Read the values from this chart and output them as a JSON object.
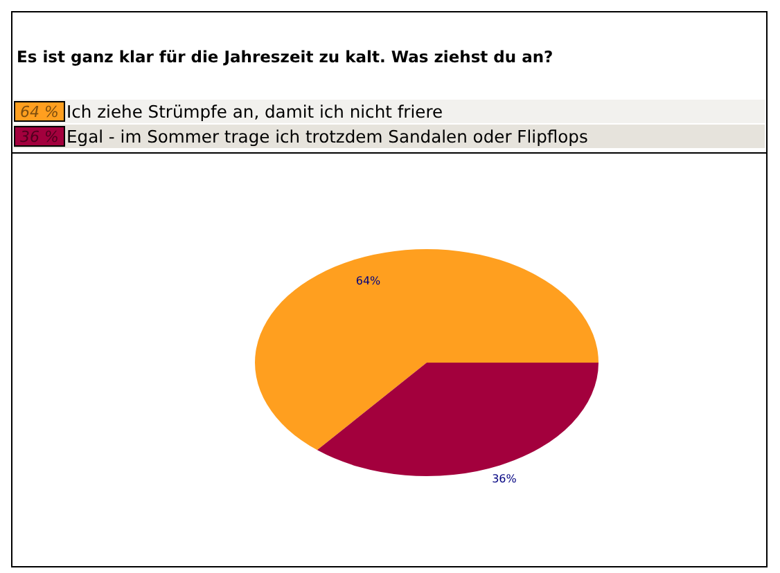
{
  "chart_data": {
    "type": "pie",
    "title": "Es ist ganz klar für die Jahreszeit zu kalt. Was ziehst du an?",
    "categories": [
      "Ich ziehe Strümpfe an, damit ich nicht friere",
      "Egal - im Sommer trage ich trotzdem Sandalen oder Flipflops"
    ],
    "values": [
      64,
      36
    ],
    "colors": [
      "#ff9f1f",
      "#a3003d"
    ],
    "value_labels": [
      "64%",
      "36%"
    ],
    "annotations": [
      "64 %",
      "36 %"
    ],
    "legend": "top"
  }
}
